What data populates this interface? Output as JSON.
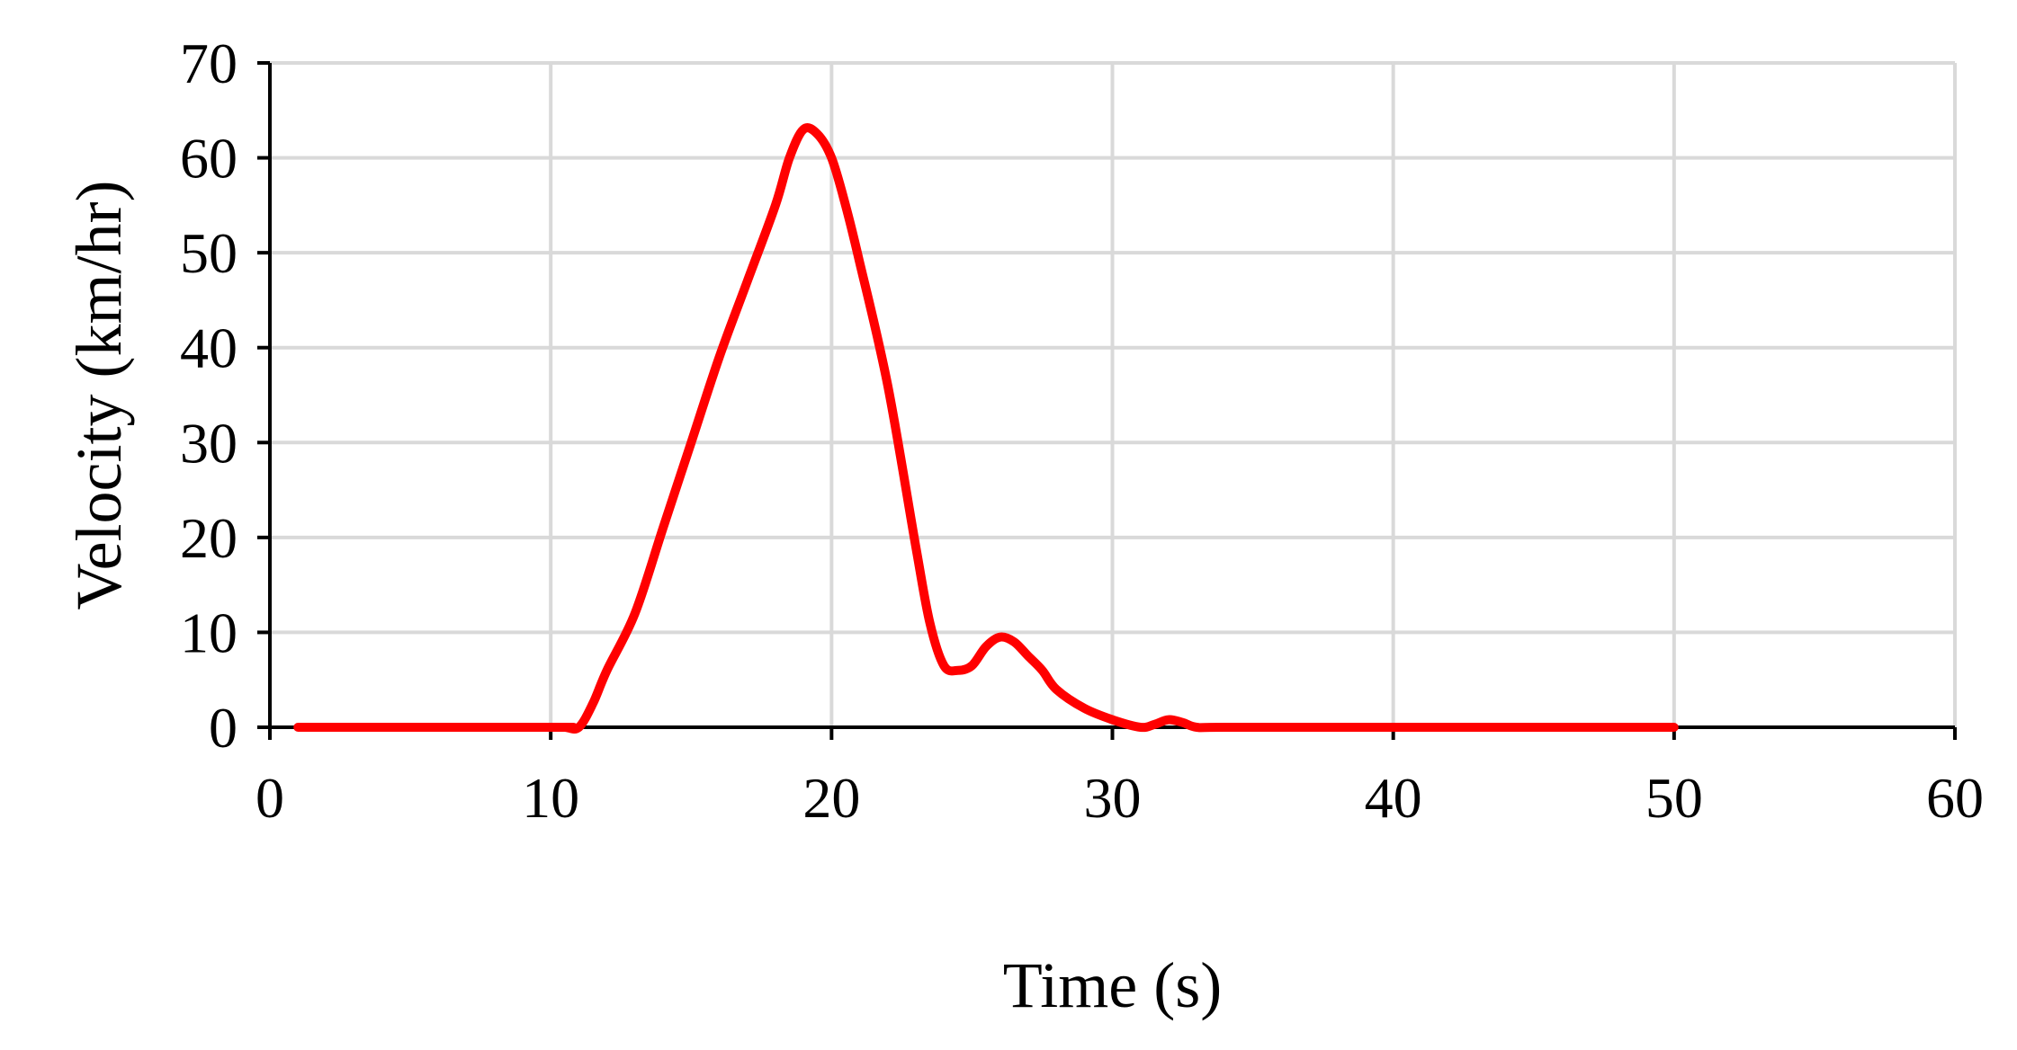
{
  "chart_data": {
    "type": "line",
    "title": "",
    "xlabel": "Time (s)",
    "ylabel": "Velocity (km/hr)",
    "xlim": [
      0,
      60
    ],
    "ylim": [
      0,
      70
    ],
    "xticks": [
      0,
      10,
      20,
      30,
      40,
      50,
      60
    ],
    "yticks": [
      0,
      10,
      20,
      30,
      40,
      50,
      60,
      70
    ],
    "grid": true,
    "legend": "none",
    "series": [
      {
        "color": "#ff0000",
        "x": [
          1,
          10,
          10.5,
          11,
          11.5,
          12,
          13,
          14,
          15,
          16,
          17,
          18,
          18.5,
          19,
          19.5,
          20,
          20.5,
          21,
          22,
          23,
          23.5,
          24,
          24.5,
          25,
          25.5,
          26,
          26.5,
          27,
          27.5,
          28,
          29,
          30,
          31,
          31.5,
          32,
          32.5,
          33,
          34,
          40,
          50
        ],
        "y": [
          0,
          0,
          0,
          0,
          2.5,
          6,
          12,
          21,
          30,
          39,
          47,
          55,
          60,
          63,
          62.5,
          60,
          55,
          49,
          36,
          19,
          11,
          6.5,
          6,
          6.5,
          8.5,
          9.5,
          9,
          7.5,
          6,
          4,
          2,
          0.8,
          0,
          0.3,
          0.8,
          0.5,
          0,
          0,
          0,
          0
        ]
      }
    ]
  }
}
